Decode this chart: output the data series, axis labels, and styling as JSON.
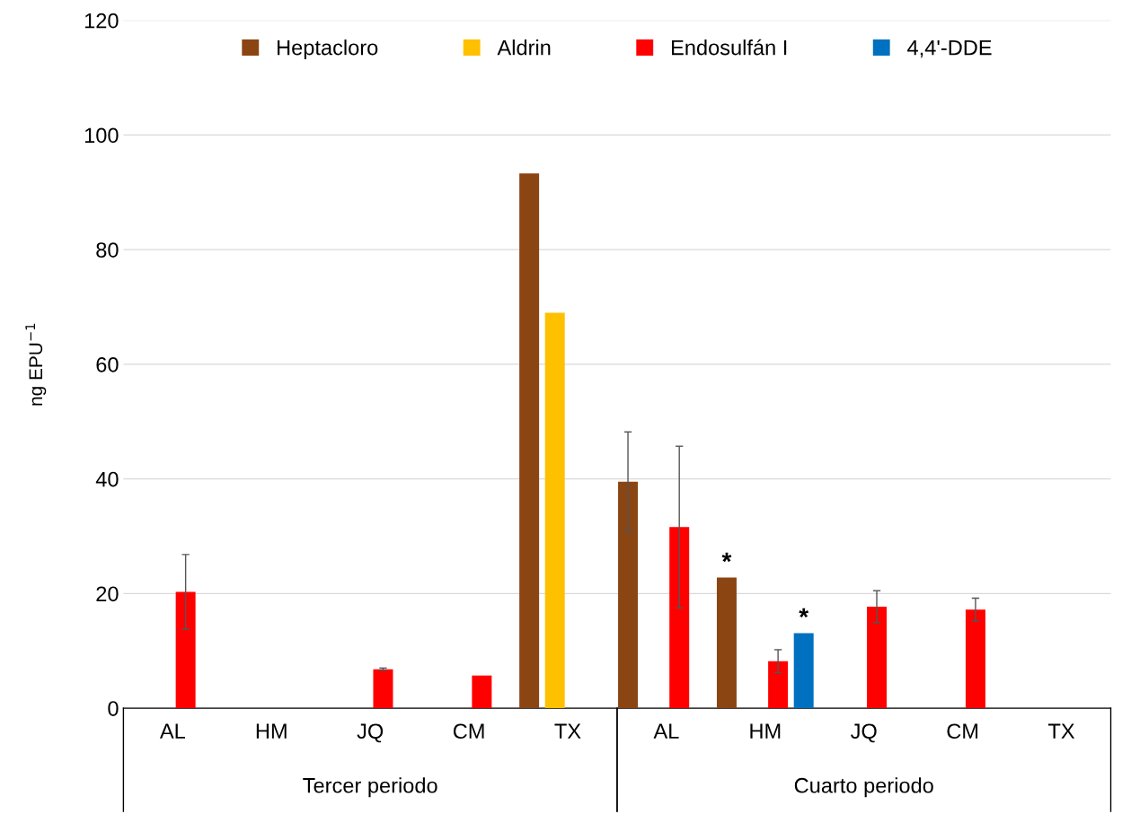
{
  "chart_data": {
    "type": "bar",
    "ylabel": "ng EPU$^{−1}$",
    "categories": [
      "AL",
      "HM",
      "JQ",
      "CM",
      "TX",
      "AL",
      "HM",
      "JQ",
      "CM",
      "TX"
    ],
    "series": [
      {
        "name": "Heptacloro",
        "color": "#8b4513",
        "values": [
          null,
          null,
          null,
          null,
          93.3,
          39.5,
          22.8,
          null,
          null,
          null
        ],
        "errors": [
          null,
          null,
          null,
          null,
          null,
          8.7,
          null,
          null,
          null,
          null
        ],
        "value_labels": [
          null,
          null,
          null,
          null,
          null,
          null,
          "*",
          null,
          null,
          null
        ]
      },
      {
        "name": "Aldrin",
        "color": "#ffc000",
        "values": [
          null,
          null,
          null,
          null,
          69.0,
          null,
          null,
          null,
          null,
          null
        ]
      },
      {
        "name": "Endosulfán I",
        "color": "#ff0000",
        "values": [
          20.3,
          null,
          6.8,
          5.7,
          null,
          31.6,
          8.2,
          17.7,
          17.2,
          null
        ],
        "errors": [
          6.5,
          null,
          0.2,
          null,
          null,
          14.1,
          2.0,
          2.8,
          2.0,
          null
        ]
      },
      {
        "name": "4,4'-DDE",
        "color": "#0070c0",
        "values": [
          null,
          null,
          null,
          null,
          null,
          null,
          13.1,
          null,
          null,
          null
        ],
        "value_labels": [
          null,
          null,
          null,
          null,
          null,
          null,
          "*",
          null,
          null,
          null
        ]
      }
    ],
    "ylim": [
      0,
      120
    ],
    "yticks": [
      0,
      20,
      40,
      60,
      80,
      100,
      120
    ],
    "grid": "y",
    "legend": "top",
    "annotations": [
      "Tercer periodo",
      "Cuarto periodo"
    ]
  }
}
